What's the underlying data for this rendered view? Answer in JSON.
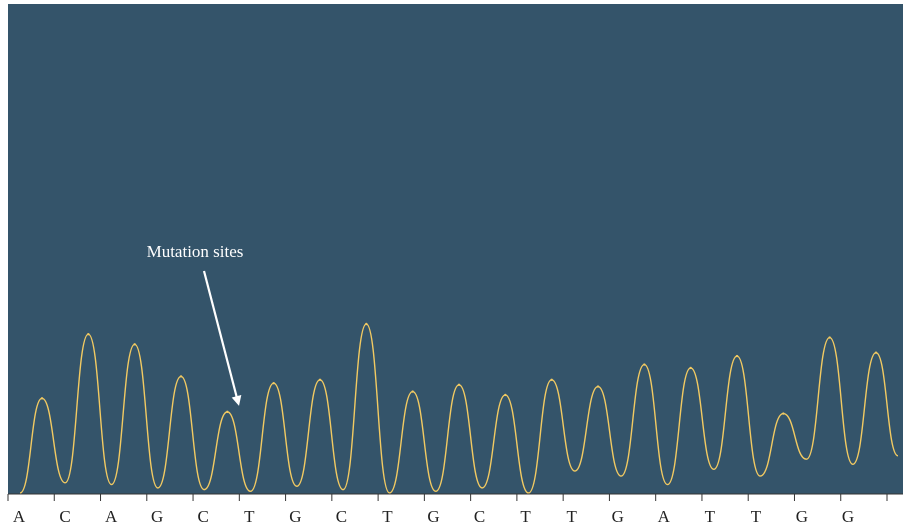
{
  "chart_data": {
    "type": "line",
    "title": "",
    "xlabel": "",
    "ylabel": "",
    "bases": [
      "A",
      "C",
      "A",
      "G",
      "C",
      "T",
      "G",
      "C",
      "T",
      "G",
      "C",
      "T",
      "T",
      "G",
      "A",
      "T",
      "T",
      "G",
      "G"
    ],
    "series": [
      {
        "values": [
          0.56,
          0.94,
          0.88,
          0.69,
          0.48,
          0.65,
          0.67,
          1.0,
          0.6,
          0.64,
          0.58,
          0.67,
          0.63,
          0.76,
          0.74,
          0.81,
          0.47,
          0.92,
          0.83
        ]
      }
    ],
    "valley_values": [
      0.0,
      0.06,
      0.05,
      0.03,
      0.02,
      0.01,
      0.04,
      0.02,
      0.0,
      0.01,
      0.03,
      0.0,
      0.13,
      0.1,
      0.05,
      0.14,
      0.1,
      0.2,
      0.17,
      0.22
    ],
    "grid": false,
    "annotations": [
      {
        "text": "Mutation sites",
        "target_base_index": 4
      }
    ],
    "colors": {
      "background": "#34546a",
      "trace": "#f2ca62",
      "annotation": "#ffffff",
      "axis": "#333333"
    }
  }
}
